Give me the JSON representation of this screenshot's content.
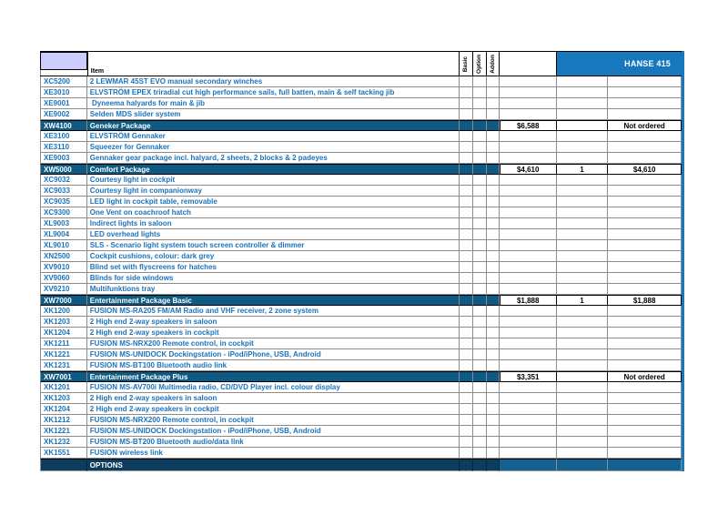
{
  "colors": {
    "brand": "#1878be",
    "pkg": "#0d5a84",
    "secleft": "#0c3d5e",
    "secright": "#136190",
    "lavender": "#ccccff",
    "itemtext": "#1b73bb",
    "grid": "#8c8c8c"
  },
  "header": {
    "item_label": "Item",
    "flag_columns": [
      "Basic",
      "Option",
      "Addon"
    ],
    "product_label": "HANSE 415"
  },
  "rows": [
    {
      "code": "XC5200",
      "desc": "2 LEWMAR 45ST EVO manual secondary winches",
      "type": "item"
    },
    {
      "code": "XE3010",
      "desc": "ELVSTRÖM EPEX triradial cut high performance sails, full batten, main & self tacking jib",
      "type": "item"
    },
    {
      "code": "XE9001",
      "desc": " Dyneema halyards for main & jib",
      "type": "item"
    },
    {
      "code": "XE9002",
      "desc": "Selden MDS slider system",
      "type": "item"
    },
    {
      "code": "XW4100",
      "desc": "Geneker Package",
      "type": "package",
      "price": "$6,588",
      "qty": "",
      "total": "Not ordered"
    },
    {
      "code": "XE3100",
      "desc": "ELVSTRÖM Gennaker",
      "type": "item"
    },
    {
      "code": "XE3110",
      "desc": "Squeezer for Gennaker",
      "type": "item"
    },
    {
      "code": "XE9003",
      "desc": "Gennaker gear package incl. halyard, 2 sheets, 2 blocks & 2 padeyes",
      "type": "item"
    },
    {
      "code": "XW5000",
      "desc": "Comfort Package",
      "type": "package",
      "price": "$4,610",
      "qty": "1",
      "total": "$4,610"
    },
    {
      "code": "XC9032",
      "desc": "Courtesy light in cockpit",
      "type": "item"
    },
    {
      "code": "XC9033",
      "desc": "Courtesy light in companionway",
      "type": "item"
    },
    {
      "code": "XC9035",
      "desc": "LED light in cockpit table, removable",
      "type": "item"
    },
    {
      "code": "XC9300",
      "desc": "One Vent on coachroof hatch",
      "type": "item"
    },
    {
      "code": "XL9003",
      "desc": "Indirect lights in saloon",
      "type": "item"
    },
    {
      "code": "XL9004",
      "desc": "LED overhead lights",
      "type": "item"
    },
    {
      "code": "XL9010",
      "desc": "SLS - Scenario light system touch screen controller & dimmer",
      "type": "item"
    },
    {
      "code": "XN2500",
      "desc": "Cockpit cushions, colour: dark grey",
      "type": "item"
    },
    {
      "code": "XV9010",
      "desc": "Blind set with flyscreens for hatches",
      "type": "item"
    },
    {
      "code": "XV9060",
      "desc": "Blinds for side windows",
      "type": "item"
    },
    {
      "code": "XV9210",
      "desc": "Multifunktions tray",
      "type": "item"
    },
    {
      "code": "XW7000",
      "desc": "Entertainment Package Basic",
      "type": "package",
      "price": "$1,888",
      "qty": "1",
      "total": "$1,888"
    },
    {
      "code": "XK1200",
      "desc": "FUSION MS-RA205 FM/AM Radio and VHF receiver, 2 zone system",
      "type": "item"
    },
    {
      "code": "XK1203",
      "desc": "2 High end 2-way speakers in saloon",
      "type": "item"
    },
    {
      "code": "XK1204",
      "desc": "2 High end 2-way speakers in cockpit",
      "type": "item"
    },
    {
      "code": "XK1211",
      "desc": "FUSION MS-NRX200 Remote control, in cockpit",
      "type": "item"
    },
    {
      "code": "XK1221",
      "desc": "FUSION MS-UNIDOCK Dockingstation - iPod/iPhone, USB, Android",
      "type": "item"
    },
    {
      "code": "XK1231",
      "desc": "FUSION MS-BT100 Bluetooth audio link",
      "type": "item"
    },
    {
      "code": "XW7001",
      "desc": "Entertainment Package Plus",
      "type": "package",
      "price": "$3,351",
      "qty": "",
      "total": "Not ordered"
    },
    {
      "code": "XK1201",
      "desc": "FUSION MS-AV700i Multimedia radio, CD/DVD Player incl. colour display",
      "type": "item"
    },
    {
      "code": "XK1203",
      "desc": "2 High end 2-way speakers in saloon",
      "type": "item"
    },
    {
      "code": "XK1204",
      "desc": "2 High end 2-way speakers in cockpit",
      "type": "item"
    },
    {
      "code": "XK1212",
      "desc": "FUSION MS-NRX200 Remote control, in cockpit",
      "type": "item"
    },
    {
      "code": "XK1221",
      "desc": "FUSION MS-UNIDOCK Dockingstation - iPod/iPhone, USB, Android",
      "type": "item"
    },
    {
      "code": "XK1232",
      "desc": "FUSION MS-BT200 Bluetooth audio/data link",
      "type": "item"
    },
    {
      "code": "XK1551",
      "desc": "FUSION wireless link",
      "type": "item"
    },
    {
      "code": "",
      "desc": "OPTIONS",
      "type": "section",
      "price": "",
      "qty": "",
      "total": ""
    }
  ]
}
